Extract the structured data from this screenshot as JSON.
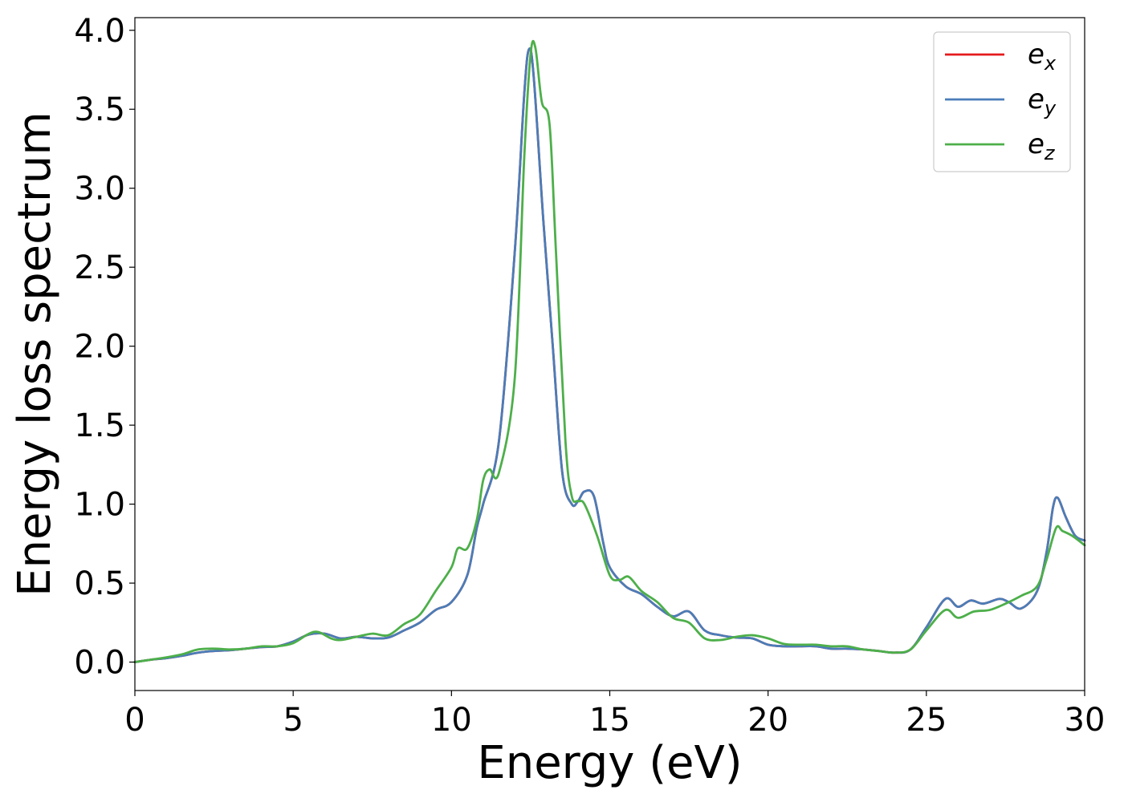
{
  "chart_data": {
    "type": "line",
    "title": "",
    "xlabel": "Energy (eV)",
    "ylabel": "Energy loss spectrum",
    "xlim": [
      0,
      30
    ],
    "ylim": [
      -0.18,
      4.08
    ],
    "xticks": [
      0,
      5,
      10,
      15,
      20,
      25,
      30
    ],
    "xtick_labels": [
      "0",
      "5",
      "10",
      "15",
      "20",
      "25",
      "30"
    ],
    "yticks": [
      0.0,
      0.5,
      1.0,
      1.5,
      2.0,
      2.5,
      3.0,
      3.5,
      4.0
    ],
    "ytick_labels": [
      "0.0",
      "0.5",
      "1.0",
      "1.5",
      "2.0",
      "2.5",
      "3.0",
      "3.5",
      "4.0"
    ],
    "grid": false,
    "legend_position": "top-right",
    "series": [
      {
        "name": "e_x",
        "legend_base": "e",
        "legend_sub": "x",
        "color": "#e41a1c",
        "points": [
          [
            0,
            0.0
          ],
          [
            0.5,
            0.015
          ],
          [
            1,
            0.025
          ],
          [
            1.5,
            0.04
          ],
          [
            2,
            0.06
          ],
          [
            2.5,
            0.07
          ],
          [
            3,
            0.075
          ],
          [
            3.5,
            0.085
          ],
          [
            4,
            0.095
          ],
          [
            4.5,
            0.1
          ],
          [
            5,
            0.13
          ],
          [
            5.5,
            0.175
          ],
          [
            6,
            0.18
          ],
          [
            6.5,
            0.15
          ],
          [
            7,
            0.16
          ],
          [
            7.5,
            0.15
          ],
          [
            8,
            0.155
          ],
          [
            8.5,
            0.2
          ],
          [
            9,
            0.25
          ],
          [
            9.5,
            0.33
          ],
          [
            10,
            0.38
          ],
          [
            10.5,
            0.55
          ],
          [
            10.8,
            0.85
          ],
          [
            11,
            1.0
          ],
          [
            11.5,
            1.4
          ],
          [
            12,
            2.6
          ],
          [
            12.3,
            3.6
          ],
          [
            12.45,
            3.88
          ],
          [
            12.6,
            3.7
          ],
          [
            12.9,
            2.8
          ],
          [
            13.2,
            2.0
          ],
          [
            13.5,
            1.2
          ],
          [
            13.8,
            1.0
          ],
          [
            14,
            1.02
          ],
          [
            14.2,
            1.08
          ],
          [
            14.5,
            1.05
          ],
          [
            14.8,
            0.75
          ],
          [
            15,
            0.6
          ],
          [
            15.5,
            0.48
          ],
          [
            16,
            0.43
          ],
          [
            16.5,
            0.35
          ],
          [
            17,
            0.29
          ],
          [
            17.5,
            0.32
          ],
          [
            18,
            0.2
          ],
          [
            18.5,
            0.17
          ],
          [
            19,
            0.155
          ],
          [
            19.5,
            0.15
          ],
          [
            20,
            0.11
          ],
          [
            20.5,
            0.1
          ],
          [
            21,
            0.1
          ],
          [
            21.5,
            0.1
          ],
          [
            22,
            0.085
          ],
          [
            22.5,
            0.085
          ],
          [
            23,
            0.08
          ],
          [
            23.5,
            0.07
          ],
          [
            24,
            0.06
          ],
          [
            24.5,
            0.08
          ],
          [
            25,
            0.22
          ],
          [
            25.6,
            0.4
          ],
          [
            26,
            0.35
          ],
          [
            26.4,
            0.39
          ],
          [
            26.8,
            0.37
          ],
          [
            27.3,
            0.4
          ],
          [
            27.6,
            0.38
          ],
          [
            28,
            0.34
          ],
          [
            28.5,
            0.45
          ],
          [
            28.8,
            0.7
          ],
          [
            29,
            0.98
          ],
          [
            29.15,
            1.04
          ],
          [
            29.4,
            0.92
          ],
          [
            29.7,
            0.8
          ],
          [
            30,
            0.77
          ]
        ]
      },
      {
        "name": "e_y",
        "legend_base": "e",
        "legend_sub": "y",
        "color": "#4a7db8",
        "points": [
          [
            0,
            0.0
          ],
          [
            0.5,
            0.015
          ],
          [
            1,
            0.025
          ],
          [
            1.5,
            0.04
          ],
          [
            2,
            0.06
          ],
          [
            2.5,
            0.07
          ],
          [
            3,
            0.075
          ],
          [
            3.5,
            0.085
          ],
          [
            4,
            0.095
          ],
          [
            4.5,
            0.1
          ],
          [
            5,
            0.13
          ],
          [
            5.5,
            0.175
          ],
          [
            6,
            0.18
          ],
          [
            6.5,
            0.15
          ],
          [
            7,
            0.16
          ],
          [
            7.5,
            0.15
          ],
          [
            8,
            0.155
          ],
          [
            8.5,
            0.2
          ],
          [
            9,
            0.25
          ],
          [
            9.5,
            0.33
          ],
          [
            10,
            0.38
          ],
          [
            10.5,
            0.55
          ],
          [
            10.8,
            0.85
          ],
          [
            11,
            1.0
          ],
          [
            11.5,
            1.4
          ],
          [
            12,
            2.6
          ],
          [
            12.3,
            3.6
          ],
          [
            12.45,
            3.88
          ],
          [
            12.6,
            3.7
          ],
          [
            12.9,
            2.8
          ],
          [
            13.2,
            2.0
          ],
          [
            13.5,
            1.2
          ],
          [
            13.8,
            1.0
          ],
          [
            14,
            1.02
          ],
          [
            14.2,
            1.08
          ],
          [
            14.5,
            1.05
          ],
          [
            14.8,
            0.75
          ],
          [
            15,
            0.6
          ],
          [
            15.5,
            0.48
          ],
          [
            16,
            0.43
          ],
          [
            16.5,
            0.35
          ],
          [
            17,
            0.29
          ],
          [
            17.5,
            0.32
          ],
          [
            18,
            0.2
          ],
          [
            18.5,
            0.17
          ],
          [
            19,
            0.155
          ],
          [
            19.5,
            0.15
          ],
          [
            20,
            0.11
          ],
          [
            20.5,
            0.1
          ],
          [
            21,
            0.1
          ],
          [
            21.5,
            0.1
          ],
          [
            22,
            0.085
          ],
          [
            22.5,
            0.085
          ],
          [
            23,
            0.08
          ],
          [
            23.5,
            0.07
          ],
          [
            24,
            0.06
          ],
          [
            24.5,
            0.08
          ],
          [
            25,
            0.22
          ],
          [
            25.6,
            0.4
          ],
          [
            26,
            0.35
          ],
          [
            26.4,
            0.39
          ],
          [
            26.8,
            0.37
          ],
          [
            27.3,
            0.4
          ],
          [
            27.6,
            0.38
          ],
          [
            28,
            0.34
          ],
          [
            28.5,
            0.45
          ],
          [
            28.8,
            0.7
          ],
          [
            29,
            0.98
          ],
          [
            29.15,
            1.04
          ],
          [
            29.4,
            0.92
          ],
          [
            29.7,
            0.8
          ],
          [
            30,
            0.77
          ]
        ]
      },
      {
        "name": "e_z",
        "legend_base": "e",
        "legend_sub": "z",
        "color": "#4daf4a",
        "points": [
          [
            0,
            0.0
          ],
          [
            0.5,
            0.015
          ],
          [
            1,
            0.03
          ],
          [
            1.5,
            0.05
          ],
          [
            2,
            0.08
          ],
          [
            2.5,
            0.085
          ],
          [
            3,
            0.08
          ],
          [
            3.5,
            0.085
          ],
          [
            4,
            0.1
          ],
          [
            4.5,
            0.1
          ],
          [
            5,
            0.12
          ],
          [
            5.5,
            0.18
          ],
          [
            5.8,
            0.19
          ],
          [
            6.2,
            0.15
          ],
          [
            6.5,
            0.14
          ],
          [
            7,
            0.16
          ],
          [
            7.5,
            0.18
          ],
          [
            8,
            0.17
          ],
          [
            8.5,
            0.24
          ],
          [
            9,
            0.3
          ],
          [
            9.5,
            0.45
          ],
          [
            10,
            0.6
          ],
          [
            10.2,
            0.72
          ],
          [
            10.5,
            0.72
          ],
          [
            10.8,
            0.9
          ],
          [
            11,
            1.15
          ],
          [
            11.2,
            1.22
          ],
          [
            11.5,
            1.2
          ],
          [
            12,
            1.8
          ],
          [
            12.3,
            3.2
          ],
          [
            12.5,
            3.85
          ],
          [
            12.65,
            3.89
          ],
          [
            12.85,
            3.55
          ],
          [
            13.1,
            3.4
          ],
          [
            13.3,
            2.6
          ],
          [
            13.6,
            1.4
          ],
          [
            13.8,
            1.05
          ],
          [
            14,
            1.02
          ],
          [
            14.2,
            1.0
          ],
          [
            14.6,
            0.8
          ],
          [
            15,
            0.55
          ],
          [
            15.3,
            0.52
          ],
          [
            15.6,
            0.54
          ],
          [
            16,
            0.45
          ],
          [
            16.5,
            0.38
          ],
          [
            17,
            0.28
          ],
          [
            17.5,
            0.25
          ],
          [
            18,
            0.15
          ],
          [
            18.5,
            0.14
          ],
          [
            19,
            0.16
          ],
          [
            19.5,
            0.17
          ],
          [
            20,
            0.15
          ],
          [
            20.5,
            0.115
          ],
          [
            21,
            0.11
          ],
          [
            21.5,
            0.11
          ],
          [
            22,
            0.1
          ],
          [
            22.5,
            0.1
          ],
          [
            23,
            0.08
          ],
          [
            23.5,
            0.07
          ],
          [
            24,
            0.06
          ],
          [
            24.5,
            0.08
          ],
          [
            25,
            0.2
          ],
          [
            25.6,
            0.33
          ],
          [
            26,
            0.28
          ],
          [
            26.5,
            0.32
          ],
          [
            27,
            0.33
          ],
          [
            27.5,
            0.37
          ],
          [
            28,
            0.42
          ],
          [
            28.5,
            0.48
          ],
          [
            28.8,
            0.65
          ],
          [
            29.1,
            0.85
          ],
          [
            29.3,
            0.83
          ],
          [
            29.6,
            0.8
          ],
          [
            30,
            0.74
          ]
        ]
      }
    ]
  }
}
